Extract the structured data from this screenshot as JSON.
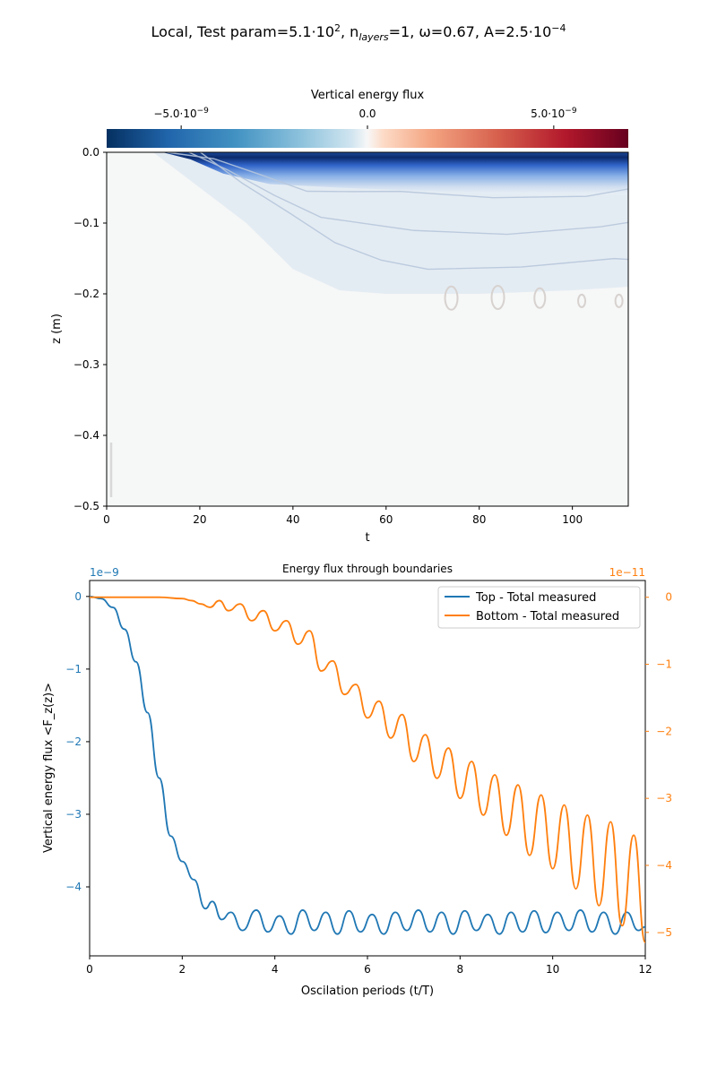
{
  "figure": {
    "title_prefix": "Local, Test param=5.1·10",
    "title_prefix_exp": "2",
    "title_sep1": ", n",
    "title_n_sub": "layers",
    "title_sep2": "=1, ω=0.67, A=2.5·10",
    "title_A_exp": "−4"
  },
  "chart_data": [
    {
      "type": "heatmap",
      "colorbar_label": "Vertical energy flux",
      "colorbar_ticks": [
        {
          "value": -5e-09,
          "mant": "−5.0·10",
          "exp": "−9"
        },
        {
          "value": 0.0,
          "mant": "0.0",
          "exp": ""
        },
        {
          "value": 5e-09,
          "mant": "5.0·10",
          "exp": "−9"
        }
      ],
      "colorbar_range": [
        -7e-09,
        7e-09
      ],
      "colormap": "RdBu_r",
      "xlabel": "t",
      "ylabel": "z (m)",
      "xlim": [
        0,
        112
      ],
      "ylim": [
        -0.5,
        0.0
      ],
      "xticks": [
        "0",
        "20",
        "40",
        "60",
        "80",
        "100"
      ],
      "yticks": [
        "0.0",
        "−0.1",
        "−0.2",
        "−0.3",
        "−0.4",
        "−0.5"
      ],
      "front_depth": [
        [
          10,
          0.0
        ],
        [
          20,
          -0.05
        ],
        [
          30,
          -0.1
        ],
        [
          40,
          -0.165
        ],
        [
          50,
          -0.195
        ],
        [
          60,
          -0.2
        ],
        [
          80,
          -0.2
        ],
        [
          100,
          -0.195
        ],
        [
          112,
          -0.19
        ]
      ]
    },
    {
      "type": "line",
      "title": "Energy flux through boundaries",
      "xlabel": "Oscilation periods (t/T)",
      "ylabel": "Vertical energy flux  <F_z(z)>",
      "xlim": [
        0,
        12
      ],
      "xticks": [
        "0",
        "2",
        "4",
        "6",
        "8",
        "10",
        "12"
      ],
      "left_axis": {
        "ylim": [
          -4.95,
          0.22
        ],
        "ticks": [
          "0",
          "−1",
          "−2",
          "−3",
          "−4"
        ],
        "offset_label": "1e−9",
        "color": "#1f77b4"
      },
      "right_axis": {
        "ylim": [
          -5.35,
          0.25
        ],
        "ticks": [
          "0",
          "−1",
          "−2",
          "−3",
          "−4",
          "−5"
        ],
        "offset_label": "1e−11",
        "color": "#ff7f0e"
      },
      "legend_position": "upper right",
      "series": [
        {
          "name": "Top - Total measured",
          "axis": "left",
          "color": "#1f77b4",
          "x": [
            0,
            0.25,
            0.5,
            0.75,
            1.0,
            1.25,
            1.5,
            1.75,
            2.0,
            2.25,
            2.5,
            2.65,
            2.85,
            3.05,
            3.3,
            3.6,
            3.85,
            4.1,
            4.35,
            4.6,
            4.85,
            5.1,
            5.35,
            5.6,
            5.85,
            6.1,
            6.35,
            6.6,
            6.85,
            7.1,
            7.35,
            7.6,
            7.85,
            8.1,
            8.35,
            8.6,
            8.85,
            9.1,
            9.35,
            9.6,
            9.85,
            10.1,
            10.35,
            10.6,
            10.85,
            11.1,
            11.35,
            11.6,
            11.85,
            12.0
          ],
          "y": [
            0,
            -0.03,
            -0.15,
            -0.45,
            -0.9,
            -1.6,
            -2.5,
            -3.3,
            -3.65,
            -3.9,
            -4.3,
            -4.2,
            -4.45,
            -4.35,
            -4.6,
            -4.32,
            -4.62,
            -4.4,
            -4.65,
            -4.32,
            -4.6,
            -4.35,
            -4.65,
            -4.33,
            -4.62,
            -4.38,
            -4.65,
            -4.35,
            -4.6,
            -4.32,
            -4.62,
            -4.35,
            -4.65,
            -4.33,
            -4.6,
            -4.38,
            -4.65,
            -4.35,
            -4.62,
            -4.33,
            -4.63,
            -4.35,
            -4.6,
            -4.32,
            -4.62,
            -4.35,
            -4.65,
            -4.35,
            -4.6,
            -4.55
          ]
        },
        {
          "name": "Bottom - Total measured",
          "axis": "right",
          "color": "#ff7f0e",
          "x": [
            0,
            1.0,
            1.5,
            2.0,
            2.2,
            2.4,
            2.6,
            2.8,
            3.0,
            3.25,
            3.5,
            3.75,
            4.0,
            4.25,
            4.5,
            4.75,
            5.0,
            5.25,
            5.5,
            5.75,
            6.0,
            6.25,
            6.5,
            6.75,
            7.0,
            7.25,
            7.5,
            7.75,
            8.0,
            8.25,
            8.5,
            8.75,
            9.0,
            9.25,
            9.5,
            9.75,
            10.0,
            10.25,
            10.5,
            10.75,
            11.0,
            11.25,
            11.5,
            11.75,
            12.0
          ],
          "y": [
            0,
            0,
            0,
            -0.02,
            -0.05,
            -0.1,
            -0.15,
            -0.05,
            -0.2,
            -0.1,
            -0.35,
            -0.2,
            -0.5,
            -0.35,
            -0.7,
            -0.5,
            -1.1,
            -0.95,
            -1.45,
            -1.3,
            -1.8,
            -1.55,
            -2.1,
            -1.75,
            -2.45,
            -2.05,
            -2.7,
            -2.25,
            -3.0,
            -2.45,
            -3.25,
            -2.65,
            -3.55,
            -2.8,
            -3.85,
            -2.95,
            -4.05,
            -3.1,
            -4.35,
            -3.25,
            -4.6,
            -3.35,
            -4.9,
            -3.55,
            -5.15
          ]
        }
      ]
    }
  ]
}
